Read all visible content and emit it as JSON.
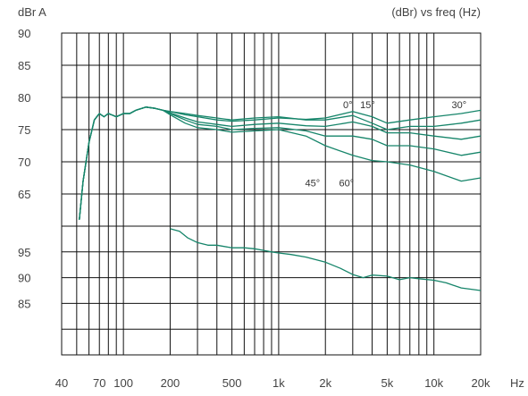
{
  "header": {
    "left_unit": "dBr A",
    "right_title": "(dBr) vs freq (Hz)"
  },
  "colors": {
    "series": "#16856a",
    "grid": "#111111",
    "text": "#444444"
  },
  "chart_data": {
    "type": "line",
    "title": "(dBr) vs freq (Hz)",
    "xscale": "log",
    "xlim": [
      40,
      20000
    ],
    "x_tick_values": [
      40,
      70,
      100,
      200,
      500,
      1000,
      2000,
      5000,
      10000,
      20000
    ],
    "x_tick_labels": [
      "40",
      "70",
      "100",
      "200",
      "500",
      "1k",
      "2k",
      "5k",
      "10k",
      "20k"
    ],
    "x_unit_label": "Hz",
    "grid": true,
    "panels": [
      {
        "name": "upper",
        "ylabel": "dBr A",
        "ylim": [
          60,
          90
        ],
        "y_tick_values": [
          65,
          70,
          75,
          80,
          85,
          90
        ],
        "y_tick_labels": [
          "65",
          "70",
          "75",
          "80",
          "85",
          "90"
        ],
        "annotations": [
          {
            "text": "0°",
            "x": 2600,
            "y": 78.3
          },
          {
            "text": "15°",
            "x": 3350,
            "y": 78.3
          },
          {
            "text": "30°",
            "x": 13000,
            "y": 78.3
          },
          {
            "text": "45°",
            "x": 1480,
            "y": 66.2
          },
          {
            "text": "60°",
            "x": 2450,
            "y": 66.2
          }
        ],
        "series": [
          {
            "name": "0°",
            "x": [
              52,
              55,
              60,
              65,
              70,
              75,
              80,
              90,
              100,
              110,
              120,
              140,
              160,
              180,
              200,
              250,
              300,
              400,
              500,
              700,
              1000,
              1500,
              2000,
              3000,
              4000,
              5000,
              7000,
              10000,
              15000,
              20000
            ],
            "values": [
              61,
              67,
              73,
              76.5,
              77.5,
              77,
              77.5,
              77,
              77.5,
              77.5,
              78,
              78.5,
              78.3,
              78,
              77.8,
              77.5,
              77.2,
              76.8,
              76.5,
              76.8,
              77,
              76.5,
              76.5,
              77.2,
              76,
              75,
              75.5,
              75.5,
              76,
              76.5
            ]
          },
          {
            "name": "15°",
            "x": [
              52,
              55,
              60,
              65,
              70,
              75,
              80,
              90,
              100,
              110,
              120,
              140,
              160,
              180,
              200,
              250,
              300,
              400,
              500,
              700,
              1000,
              1500,
              2000,
              3000,
              4000,
              5000,
              7000,
              10000,
              15000,
              20000
            ],
            "values": [
              61,
              67,
              73,
              76.5,
              77.5,
              77,
              77.5,
              77,
              77.5,
              77.5,
              78,
              78.5,
              78.3,
              78,
              77.8,
              77.3,
              77,
              76.5,
              76.3,
              76.5,
              76.8,
              76.6,
              76.8,
              77.8,
              77,
              76,
              76.5,
              77,
              77.5,
              78
            ]
          },
          {
            "name": "30°",
            "x": [
              52,
              55,
              60,
              65,
              70,
              75,
              80,
              90,
              100,
              110,
              120,
              140,
              160,
              180,
              200,
              250,
              300,
              400,
              500,
              700,
              1000,
              1500,
              2000,
              3000,
              4000,
              5000,
              7000,
              10000,
              15000,
              20000
            ],
            "values": [
              61,
              67,
              73,
              76.5,
              77.5,
              77,
              77.5,
              77,
              77.5,
              77.5,
              78,
              78.5,
              78.3,
              78,
              77.6,
              76.8,
              76.2,
              75.8,
              75.5,
              75.8,
              76,
              75.6,
              75.5,
              76.2,
              75.5,
              74.5,
              74.5,
              74,
              73.5,
              74
            ]
          },
          {
            "name": "45°",
            "x": [
              52,
              55,
              60,
              65,
              70,
              75,
              80,
              90,
              100,
              110,
              120,
              140,
              160,
              180,
              200,
              250,
              300,
              400,
              500,
              700,
              1000,
              1500,
              2000,
              3000,
              4000,
              5000,
              7000,
              10000,
              15000,
              20000
            ],
            "values": [
              61,
              67,
              73,
              76.5,
              77.5,
              77,
              77.5,
              77,
              77.5,
              77.5,
              78,
              78.5,
              78.3,
              78,
              77.5,
              76.5,
              75.8,
              75.5,
              75,
              75.2,
              75.3,
              74.8,
              74,
              74,
              73.5,
              72.5,
              72.5,
              72,
              71,
              71.5
            ]
          },
          {
            "name": "60°",
            "x": [
              52,
              55,
              60,
              65,
              70,
              75,
              80,
              90,
              100,
              110,
              120,
              140,
              160,
              180,
              200,
              250,
              300,
              400,
              500,
              700,
              1000,
              1500,
              2000,
              3000,
              4000,
              5000,
              7000,
              10000,
              15000,
              20000
            ],
            "values": [
              61,
              67,
              73,
              76.5,
              77.5,
              77,
              77.5,
              77,
              77.5,
              77.5,
              78,
              78.5,
              78.3,
              78,
              77.3,
              76,
              75.3,
              75,
              74.6,
              74.8,
              75,
              74,
              72.5,
              71,
              70.2,
              70,
              69.5,
              68.5,
              67,
              67.5
            ]
          }
        ]
      },
      {
        "name": "lower",
        "ylabel": "",
        "ylim": [
          75,
          100
        ],
        "y_tick_values": [
          85,
          90,
          95
        ],
        "y_tick_labels": [
          "85",
          "90",
          "95"
        ],
        "series": [
          {
            "name": "",
            "x": [
              200,
              230,
              260,
              300,
              350,
              400,
              500,
              600,
              700,
              800,
              900,
              1000,
              1200,
              1500,
              2000,
              2500,
              3000,
              3500,
              4000,
              5000,
              6000,
              7000,
              8000,
              10000,
              12000,
              15000,
              20000
            ],
            "values": [
              99.5,
              99,
              97.7,
              96.8,
              96.3,
              96.3,
              95.8,
              95.8,
              95.6,
              95.3,
              95,
              94.8,
              94.5,
              94,
              93,
              91.8,
              90.6,
              90,
              90.5,
              90.3,
              89.6,
              90,
              89.8,
              89.5,
              89,
              88,
              87.5
            ]
          }
        ]
      }
    ]
  }
}
